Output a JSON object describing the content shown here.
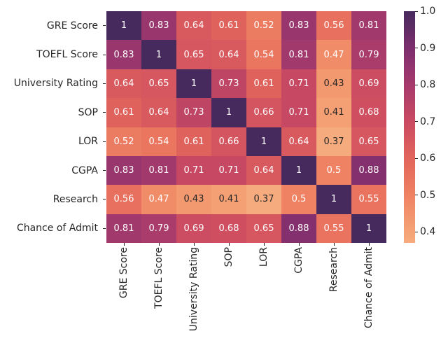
{
  "chart_data": {
    "type": "heatmap",
    "title": "",
    "categories": [
      "GRE Score",
      "TOEFL Score",
      "University Rating",
      "SOP",
      "LOR",
      "CGPA",
      "Research",
      "Chance of Admit"
    ],
    "matrix": [
      [
        1,
        0.83,
        0.64,
        0.61,
        0.52,
        0.83,
        0.56,
        0.81
      ],
      [
        0.83,
        1,
        0.65,
        0.64,
        0.54,
        0.81,
        0.47,
        0.79
      ],
      [
        0.64,
        0.65,
        1,
        0.73,
        0.61,
        0.71,
        0.43,
        0.69
      ],
      [
        0.61,
        0.64,
        0.73,
        1,
        0.66,
        0.71,
        0.41,
        0.68
      ],
      [
        0.52,
        0.54,
        0.61,
        0.66,
        1,
        0.64,
        0.37,
        0.65
      ],
      [
        0.83,
        0.81,
        0.71,
        0.71,
        0.64,
        1,
        0.5,
        0.88
      ],
      [
        0.56,
        0.47,
        0.43,
        0.41,
        0.37,
        0.5,
        1,
        0.55
      ],
      [
        0.81,
        0.79,
        0.69,
        0.68,
        0.65,
        0.88,
        0.55,
        1
      ]
    ],
    "vmin": 0.37,
    "vmax": 1.0,
    "colorbar_ticks": [
      {
        "label": "1.0",
        "value": 1.0
      },
      {
        "label": "0.9",
        "value": 0.9
      },
      {
        "label": "0.8",
        "value": 0.8
      },
      {
        "label": "0.7",
        "value": 0.7
      },
      {
        "label": "0.6",
        "value": 0.6
      },
      {
        "label": "0.5",
        "value": 0.5
      },
      {
        "label": "0.4",
        "value": 0.4
      }
    ],
    "colormap_anchors": [
      {
        "value": 0.37,
        "color": "#f6ab7e"
      },
      {
        "value": 0.4,
        "color": "#f4a376"
      },
      {
        "value": 0.5,
        "color": "#ef8263"
      },
      {
        "value": 0.6,
        "color": "#e2655b"
      },
      {
        "value": 0.7,
        "color": "#ca4a62"
      },
      {
        "value": 0.8,
        "color": "#a63a6d"
      },
      {
        "value": 0.9,
        "color": "#7c2e6e"
      },
      {
        "value": 1.0,
        "color": "#462a5e"
      }
    ],
    "annot_text_dark": "#262626",
    "annot_text_light": "#ffffff",
    "tick_color": "#262626",
    "legend_position": "right",
    "grid": false
  }
}
